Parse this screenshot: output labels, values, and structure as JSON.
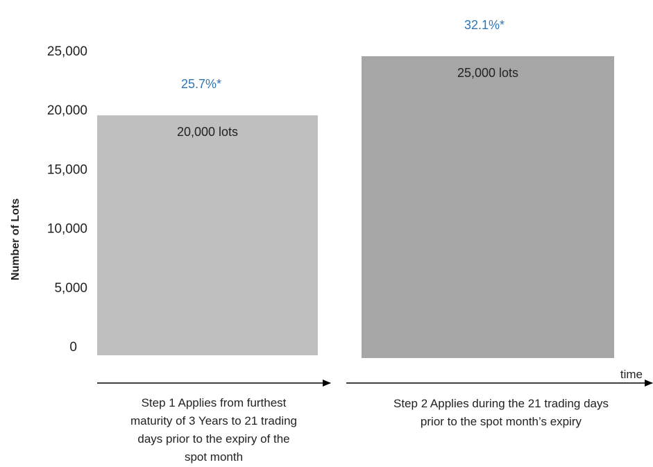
{
  "chart_data": {
    "type": "bar",
    "ylabel": "Number of Lots",
    "ylim": [
      0,
      25000
    ],
    "yticks": [
      "25,000",
      "20,000",
      "15,000",
      "10,000",
      "5,000",
      "0"
    ],
    "ytick_values": [
      25000,
      20000,
      15000,
      10000,
      5000,
      0
    ],
    "series": [
      {
        "values": [
          20000,
          25000
        ],
        "data_labels": [
          "20,000 lots",
          "25,000 lots"
        ],
        "percent_labels": [
          "25.7%*",
          "32.1%*"
        ],
        "colors": [
          "#bfbfbf",
          "#a6a6a6"
        ]
      }
    ],
    "categories": [
      [
        "Step 1 Applies from furthest",
        "maturity of 3 Years to 21 trading",
        "days prior to the expiry of the",
        "spot month"
      ],
      [
        "Step 2 Applies during the 21 trading days",
        "prior to the spot month’s expiry"
      ]
    ],
    "x_axis_label": "time",
    "grid": false,
    "legend": "none"
  },
  "colors": {
    "percent_label": "#2e75b6",
    "arrow": "#000000"
  }
}
